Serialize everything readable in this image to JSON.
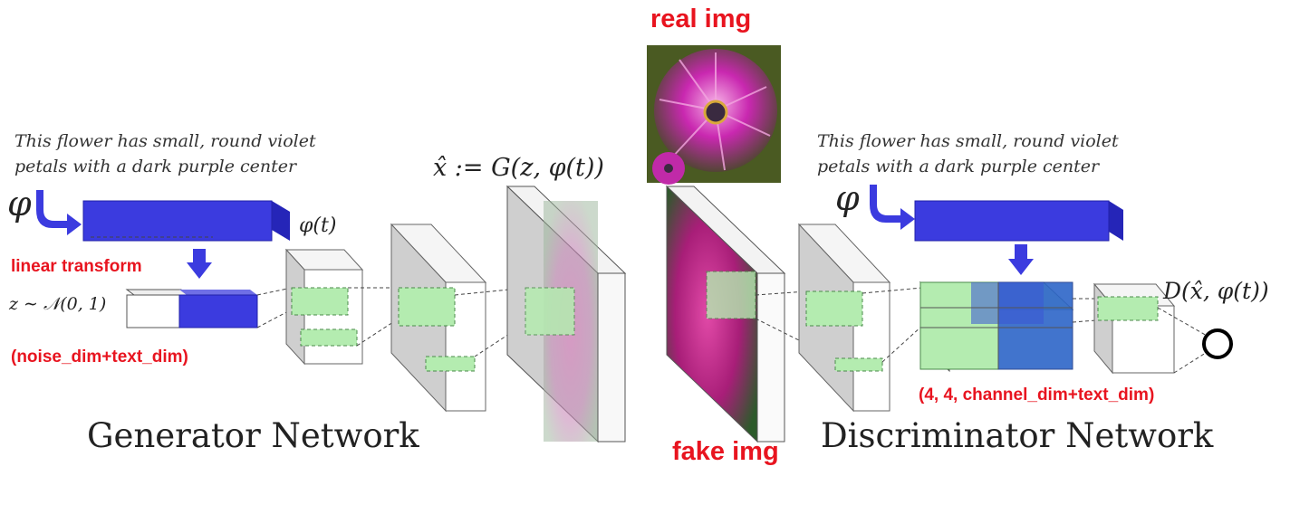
{
  "labels": {
    "real_img": "real img",
    "fake_img": "fake img",
    "linear_transform": "linear transform",
    "noise_text_dim": "(noise_dim+text_dim)",
    "disc_dims": "(4, 4, channel_dim+text_dim)",
    "generator_network": "Generator Network",
    "discriminator_network": "Discriminator Network"
  },
  "caption_gen": {
    "line1": "This flower has small, round violet",
    "line2": "petals with a dark purple center"
  },
  "caption_disc": {
    "line1": "This flower has small, round violet",
    "line2": "petals with a dark purple center"
  },
  "math": {
    "phi": "φ",
    "phi_t": "φ(t)",
    "z_dist": "z ∼ 𝒩(0, 1)",
    "x_hat": "x̂ := G(z, φ(t))",
    "d_out": "D(x̂, φ(t))"
  },
  "colors": {
    "embed_blue": "#3b3bdf",
    "feature_green": "#b4ecb0",
    "label_red": "#e8141f"
  }
}
